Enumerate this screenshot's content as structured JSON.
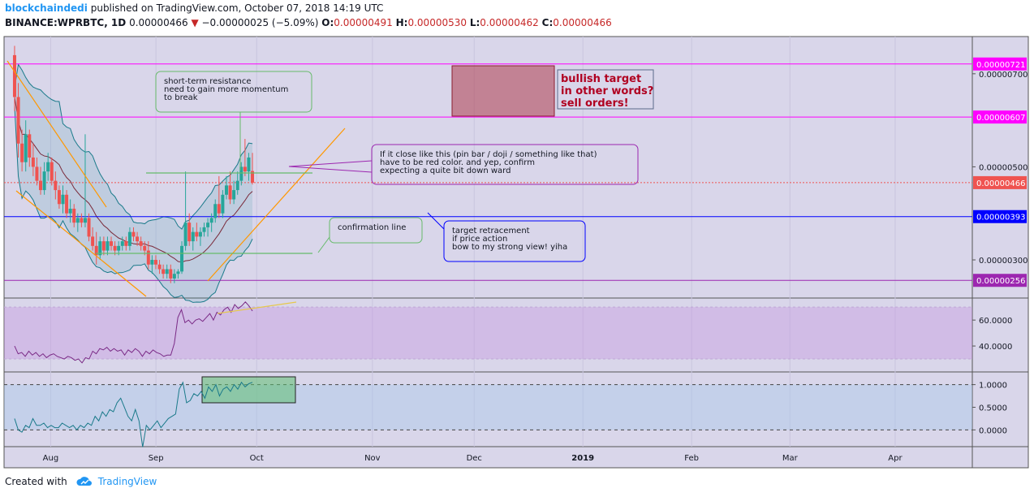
{
  "header": {
    "author": "blockchaindedi",
    "published": "published on TradingView.com, October 07, 2018 14:19 UTC",
    "symbol": "BINANCE:WPRBTC, 1D",
    "price": "0.00000466",
    "change": "−0.00000025 (−5.09%)",
    "ohlc": {
      "o_label": "O:",
      "o": "0.00000491",
      "h_label": "H:",
      "h": "0.00000530",
      "l_label": "L:",
      "l": "0.00000462",
      "c_label": "C:",
      "c": "0.00000466"
    }
  },
  "footer": {
    "created_with": "Created with",
    "brand": "TradingView"
  },
  "colors": {
    "background": "#d9d6ea",
    "magenta": "#ff00ff",
    "blue": "#0000ff",
    "purple": "#9c27b0",
    "red_line": "#ef5350",
    "up": "#26a69a",
    "down": "#ef5350",
    "orange": "#ff9800",
    "green": "#4caf50"
  },
  "chart_data": {
    "type": "candlestick",
    "price_axis": {
      "ylim": [
        2.18e-06,
        7.8e-06
      ],
      "ticks": [
        {
          "value": 7e-06,
          "label": "0.00000700"
        },
        {
          "value": 5e-06,
          "label": "0.00000500"
        },
        {
          "value": 3e-06,
          "label": "0.00000300"
        }
      ]
    },
    "time_axis": {
      "labels": [
        "Aug",
        "Sep",
        "Oct",
        "Nov",
        "Dec",
        "2019",
        "Feb",
        "Mar",
        "Apr"
      ],
      "label_values": [
        0.143,
        1.143,
        2.1,
        3.2,
        4.167,
        5.2,
        6.233,
        7.167,
        8.167
      ],
      "xlim": [
        -0.3,
        8.9
      ]
    },
    "levels": [
      {
        "value": 7.21e-06,
        "label": "0.00000721",
        "color": "#ff00ff"
      },
      {
        "value": 6.07e-06,
        "label": "0.00000607",
        "color": "#ff00ff"
      },
      {
        "value": 4.66e-06,
        "label": "0.00000466",
        "color": "#ef5350",
        "style": "dotted"
      },
      {
        "value": 3.93e-06,
        "label": "0.00000393",
        "color": "#0000ff"
      },
      {
        "value": 2.56e-06,
        "label": "0.00000256",
        "color": "#9c27b0"
      }
    ],
    "candles": [
      [
        7.4e-06,
        7.6e-06,
        6.2e-06,
        6.5e-06
      ],
      [
        6.5e-06,
        6.8e-06,
        5.2e-06,
        5.5e-06
      ],
      [
        5.5e-06,
        5.8e-06,
        4.9e-06,
        5.1e-06
      ],
      [
        5.1e-06,
        6e-06,
        4.9e-06,
        5.7e-06
      ],
      [
        5.7e-06,
        5.8e-06,
        5e-06,
        5.2e-06
      ],
      [
        5.2e-06,
        5.5e-06,
        4.8e-06,
        5e-06
      ],
      [
        5e-06,
        5.2e-06,
        4.6e-06,
        4.7e-06
      ],
      [
        4.7e-06,
        5e-06,
        4.4e-06,
        4.5e-06
      ],
      [
        4.5e-06,
        5.1e-06,
        4.4e-06,
        4.9e-06
      ],
      [
        4.9e-06,
        5.3e-06,
        4.7e-06,
        5.1e-06
      ],
      [
        5.1e-06,
        5.2e-06,
        4.6e-06,
        4.7e-06
      ],
      [
        4.7e-06,
        4.9e-06,
        4.3e-06,
        4.5e-06
      ],
      [
        4.5e-06,
        4.6e-06,
        4.1e-06,
        4.2e-06
      ],
      [
        4.2e-06,
        4.6e-06,
        4e-06,
        4.4e-06
      ],
      [
        4.4e-06,
        4.5e-06,
        3.9e-06,
        4e-06
      ],
      [
        4e-06,
        4.3e-06,
        3.8e-06,
        4.1e-06
      ],
      [
        4.1e-06,
        4.2e-06,
        3.7e-06,
        3.8e-06
      ],
      [
        3.8e-06,
        4e-06,
        3.6e-06,
        3.9e-06
      ],
      [
        3.9e-06,
        4e-06,
        3.7e-06,
        3.8e-06
      ],
      [
        3.8e-06,
        5.7e-06,
        3.7e-06,
        3.9e-06
      ],
      [
        3.9e-06,
        4e-06,
        3.4e-06,
        3.5e-06
      ],
      [
        3.5e-06,
        3.7e-06,
        3.2e-06,
        3.3e-06
      ],
      [
        3.3e-06,
        3.6e-06,
        2.9e-06,
        3.1e-06
      ],
      [
        3.1e-06,
        3.5e-06,
        3e-06,
        3.4e-06
      ],
      [
        3.4e-06,
        3.5e-06,
        3.1e-06,
        3.2e-06
      ],
      [
        3.2e-06,
        3.5e-06,
        3.1e-06,
        3.4e-06
      ],
      [
        3.4e-06,
        3.5e-06,
        3.2e-06,
        3.3e-06
      ],
      [
        3.3e-06,
        3.4e-06,
        3.1e-06,
        3.2e-06
      ],
      [
        3.2e-06,
        3.4e-06,
        3.1e-06,
        3.3e-06
      ],
      [
        3.3e-06,
        3.5e-06,
        3.2e-06,
        3.4e-06
      ],
      [
        3.4e-06,
        3.5e-06,
        3.2e-06,
        3.3e-06
      ],
      [
        3.3e-06,
        3.7e-06,
        3.2e-06,
        3.6e-06
      ],
      [
        3.6e-06,
        3.7e-06,
        3.4e-06,
        3.5e-06
      ],
      [
        3.5e-06,
        3.6e-06,
        3.3e-06,
        3.4e-06
      ],
      [
        3.4e-06,
        3.5e-06,
        3.2e-06,
        3.3e-06
      ],
      [
        3.3e-06,
        3.4e-06,
        3.1e-06,
        3.2e-06
      ],
      [
        3.2e-06,
        3.4e-06,
        2.8e-06,
        2.9e-06
      ],
      [
        2.9e-06,
        3.1e-06,
        2.7e-06,
        3e-06
      ],
      [
        3e-06,
        3.1e-06,
        2.8e-06,
        2.9e-06
      ],
      [
        2.9e-06,
        3e-06,
        2.7e-06,
        2.8e-06
      ],
      [
        2.8e-06,
        2.9e-06,
        2.6e-06,
        2.7e-06
      ],
      [
        2.7e-06,
        2.9e-06,
        2.6e-06,
        2.8e-06
      ],
      [
        2.8e-06,
        2.9e-06,
        2.5e-06,
        2.6e-06
      ],
      [
        2.6e-06,
        2.8e-06,
        2.5e-06,
        2.7e-06
      ],
      [
        2.7e-06,
        2.8e-06,
        2.6e-06,
        2.75e-06
      ],
      [
        2.75e-06,
        3.4e-06,
        2.7e-06,
        3.3e-06
      ],
      [
        3.3e-06,
        4.9e-06,
        3.2e-06,
        3.8e-06
      ],
      [
        3.8e-06,
        4e-06,
        3.3e-06,
        3.4e-06
      ],
      [
        3.4e-06,
        3.7e-06,
        3.2e-06,
        3.6e-06
      ],
      [
        3.6e-06,
        3.8e-06,
        3.4e-06,
        3.5e-06
      ],
      [
        3.5e-06,
        3.7e-06,
        3.3e-06,
        3.6e-06
      ],
      [
        3.6e-06,
        3.8e-06,
        3.5e-06,
        3.7e-06
      ],
      [
        3.7e-06,
        3.9e-06,
        3.5e-06,
        3.8e-06
      ],
      [
        3.8e-06,
        4e-06,
        3.6e-06,
        3.9e-06
      ],
      [
        3.9e-06,
        4.3e-06,
        3.8e-06,
        4.2e-06
      ],
      [
        4.2e-06,
        4.8e-06,
        3.9e-06,
        4e-06
      ],
      [
        4e-06,
        4.5e-06,
        3.9e-06,
        4.4e-06
      ],
      [
        4.4e-06,
        4.8e-06,
        4.3e-06,
        4.6e-06
      ],
      [
        4.6e-06,
        4.9e-06,
        4.2e-06,
        4.3e-06
      ],
      [
        4.3e-06,
        4.7e-06,
        4.2e-06,
        4.5e-06
      ],
      [
        4.5e-06,
        4.9e-06,
        4.4e-06,
        4.7e-06
      ],
      [
        4.7e-06,
        5.1e-06,
        4.6e-06,
        5e-06
      ],
      [
        5e-06,
        5.6e-06,
        4.8e-06,
        4.9e-06
      ],
      [
        4.9e-06,
        5.3e-06,
        4.7e-06,
        5.2e-06
      ],
      [
        4.91e-06,
        5.3e-06,
        4.62e-06,
        4.66e-06
      ]
    ],
    "rsi": {
      "ylim": [
        20,
        77
      ],
      "band": [
        30,
        70
      ],
      "ticks": [
        {
          "value": 60,
          "label": "60.0000"
        },
        {
          "value": 40,
          "label": "40.0000"
        }
      ],
      "values": [
        40,
        34,
        35,
        32,
        36,
        33,
        35,
        32,
        34,
        31,
        33,
        34,
        32,
        31,
        30,
        32,
        31,
        29,
        30,
        27,
        31,
        30,
        36,
        34,
        38,
        37,
        39,
        36,
        38,
        36,
        37,
        33,
        37,
        35,
        38,
        36,
        32,
        36,
        34,
        37,
        35,
        34,
        32,
        33,
        33,
        42,
        62,
        68,
        58,
        60,
        57,
        60,
        61,
        59,
        62,
        65,
        60,
        66,
        64,
        68,
        70,
        66,
        72,
        69,
        71,
        74,
        71,
        67
      ]
    },
    "stoch": {
      "ylim": [
        -0.37,
        1.28
      ],
      "levels": [
        1,
        0
      ],
      "ticks": [
        {
          "value": 1,
          "label": "1.0000"
        },
        {
          "value": 0.5,
          "label": "0.5000"
        },
        {
          "value": 0,
          "label": "0.0000"
        }
      ],
      "values": [
        0.25,
        0,
        -0.05,
        0.1,
        0.05,
        0.25,
        0.1,
        0.1,
        0.15,
        0.05,
        0.1,
        0.05,
        0.05,
        0.15,
        0.1,
        0.05,
        0.1,
        0,
        0.1,
        0.05,
        0.15,
        0.1,
        0.3,
        0.2,
        0.4,
        0.3,
        0.45,
        0.4,
        0.6,
        0.7,
        0.5,
        0.3,
        0.2,
        0.45,
        0.2,
        -0.38,
        0.1,
        0,
        0.1,
        0.2,
        0.05,
        0.15,
        0.25,
        0.3,
        0.35,
        0.9,
        1.05,
        0.6,
        0.65,
        0.8,
        0.75,
        0.85,
        0.7,
        0.95,
        0.85,
        1,
        0.75,
        0.9,
        0.95,
        0.85,
        1,
        0.9,
        1.05,
        0.95,
        1.02,
        1.05
      ]
    }
  },
  "annotations": {
    "resistance": "short-term resistance\nneed to gain more momentum\nto break",
    "pinbar": "If it close like this (pin bar / doji / something like that)\nhave to be red color. and yep, confirm\nexpecting a quite bit down ward",
    "bullish": "bullish target\nin other words?\nsell orders!",
    "confirmation": "confirmation line",
    "retracement": "target retracement\nif price action\nbow to my strong view! yiha"
  }
}
